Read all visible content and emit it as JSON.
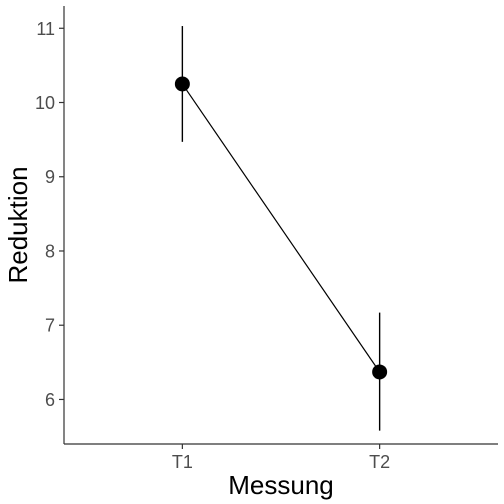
{
  "chart_data": {
    "type": "line",
    "title": "",
    "xlabel": "Messung",
    "ylabel": "Reduktion",
    "categories": [
      "T1",
      "T2"
    ],
    "series": [
      {
        "values": [
          10.25,
          6.37
        ],
        "error_low": [
          9.47,
          5.58
        ],
        "error_high": [
          11.03,
          7.17
        ]
      }
    ],
    "ylim": [
      5.4,
      11.3
    ],
    "yticks": [
      "6",
      "7",
      "8",
      "9",
      "10",
      "11"
    ],
    "ytick_values": [
      6,
      7,
      8,
      9,
      10,
      11
    ],
    "grid": false,
    "legend": "none"
  },
  "colors": {
    "line": "#000000",
    "point": "#000000",
    "axis": "#333333",
    "tick_text": "#4d4d4d",
    "title_text": "#000000",
    "background": "#ffffff"
  }
}
